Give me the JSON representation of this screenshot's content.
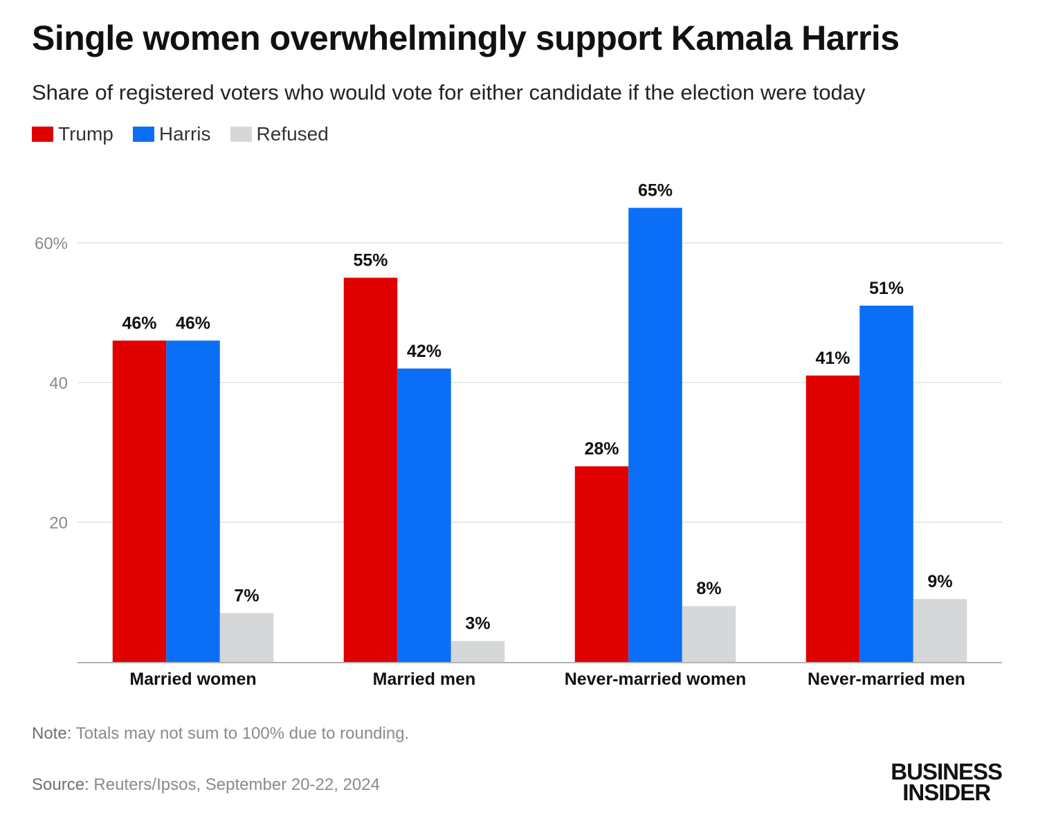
{
  "title": "Single women overwhelmingly support Kamala Harris",
  "subtitle": "Share of registered voters who would vote for either candidate if the election were today",
  "legend": [
    {
      "label": "Trump",
      "color": "#e00000"
    },
    {
      "label": "Harris",
      "color": "#0b6ef6"
    },
    {
      "label": "Refused",
      "color": "#d5d7d8"
    }
  ],
  "chart_data": {
    "type": "bar",
    "title": "Single women overwhelmingly support Kamala Harris",
    "subtitle": "Share of registered voters who would vote for either candidate if the election were today",
    "xlabel": "",
    "ylabel": "",
    "ylim": [
      0,
      60
    ],
    "grid": true,
    "legend_position": "top-left",
    "y_ticks": [
      {
        "value": 20,
        "label": "20"
      },
      {
        "value": 40,
        "label": "40"
      },
      {
        "value": 60,
        "label": "60%"
      }
    ],
    "categories": [
      "Married women",
      "Married men",
      "Never-married women",
      "Never-married men"
    ],
    "series": [
      {
        "name": "Trump",
        "color": "#e00000",
        "values": [
          46,
          55,
          28,
          41
        ],
        "labels": [
          "46%",
          "55%",
          "28%",
          "41%"
        ]
      },
      {
        "name": "Harris",
        "color": "#0b6ef6",
        "values": [
          46,
          42,
          65,
          51
        ],
        "labels": [
          "46%",
          "42%",
          "65%",
          "51%"
        ]
      },
      {
        "name": "Refused",
        "color": "#d5d7d8",
        "values": [
          7,
          3,
          8,
          9
        ],
        "labels": [
          "7%",
          "3%",
          "8%",
          "9%"
        ]
      }
    ]
  },
  "footer": {
    "note_key": "Note:",
    "note_text": " Totals may not sum to 100% due to rounding.",
    "source_key": "Source:",
    "source_text": " Reuters/Ipsos, September 20-22, 2024"
  },
  "logo": {
    "line1": "BUSINESS",
    "line2": "INSIDER"
  }
}
